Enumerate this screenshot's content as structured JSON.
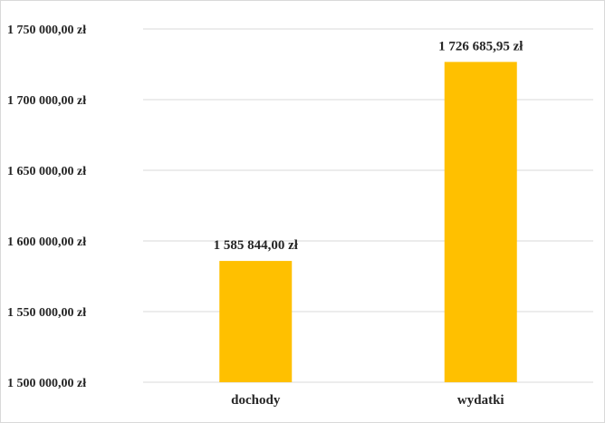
{
  "chart_data": {
    "type": "bar",
    "categories": [
      "dochody",
      "wydatki"
    ],
    "values": [
      1585844.0,
      1726685.95
    ],
    "value_labels": [
      "1 585 844,00 zł",
      "1 726 685,95 zł"
    ],
    "ylim": [
      1500000,
      1750000
    ],
    "y_ticks": [
      1500000,
      1550000,
      1600000,
      1650000,
      1700000,
      1750000
    ],
    "y_tick_labels": [
      "1 500 000,00 zł",
      "1 550 000,00 zł",
      "1 600 000,00 zł",
      "1 650 000,00 zł",
      "1 700 000,00 zł",
      "1 750 000,00 zł"
    ],
    "grid": true,
    "bar_color": "#FFC000",
    "gridline_color": "#D9D9D9",
    "text_color": "#262626",
    "title": "",
    "xlabel": "",
    "ylabel": ""
  }
}
